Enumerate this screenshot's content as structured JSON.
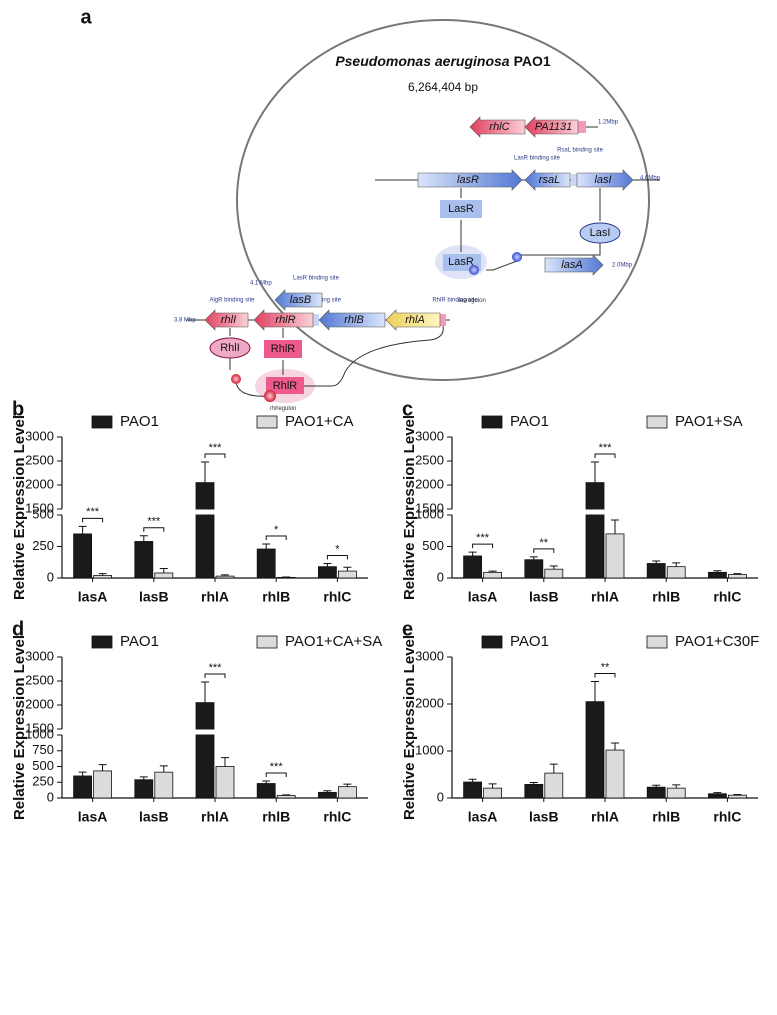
{
  "diagram": {
    "panel": "a",
    "organism": "Pseudomonas aeruginosa",
    "strain": "PAO1",
    "genome_size": "6,264,404 bp",
    "genes": [
      "rhlC",
      "PA1131",
      "lasR",
      "rsaL",
      "lasI",
      "lasA",
      "lasB",
      "rhlI",
      "rhlR",
      "rhlB",
      "rhlA"
    ],
    "proteins": [
      "LasR",
      "LasR",
      "LasI",
      "RhlI",
      "RhlR",
      "RhlR"
    ],
    "positions": [
      "1.2Mbp",
      "4.6Mbp",
      "2.0Mbp",
      "4.1 Mbp",
      "3.8 Mbp"
    ],
    "binding_sites": [
      "LasR binding site",
      "RsaL binding site",
      "LasR binding site",
      "AlgR binding site",
      "LasR binding site",
      "RhlR binding site"
    ],
    "regulons": [
      {
        "prefix": "las",
        "word": "regulon"
      },
      {
        "prefix": "rhl",
        "word": "regulon"
      }
    ]
  },
  "chart_data": [
    {
      "type": "bar",
      "panel": "b",
      "ylabel": "Relative Expression Level",
      "categories": [
        "lasA",
        "lasB",
        "rhlA",
        "rhlB",
        "rhlC"
      ],
      "series": [
        {
          "name": "PAO1",
          "color": "#1a1a1a",
          "values": [
            350,
            290,
            2050,
            230,
            90
          ],
          "errors": [
            60,
            45,
            430,
            40,
            25
          ]
        },
        {
          "name": "PAO1+CA",
          "color": "#dcdcdc",
          "values": [
            20,
            40,
            15,
            5,
            55
          ],
          "errors": [
            15,
            35,
            10,
            3,
            30
          ]
        }
      ],
      "significance": [
        "***",
        "***",
        "***",
        "*",
        "*"
      ],
      "ylim": [
        0,
        3000
      ],
      "ybreak": [
        500,
        1500
      ],
      "yticks": [
        0,
        250,
        500,
        1500,
        2000,
        2500,
        3000
      ]
    },
    {
      "type": "bar",
      "panel": "c",
      "ylabel": "Relative Expression Level",
      "categories": [
        "lasA",
        "lasB",
        "rhlA",
        "rhlB",
        "rhlC"
      ],
      "series": [
        {
          "name": "PAO1",
          "color": "#1a1a1a",
          "values": [
            350,
            290,
            2050,
            230,
            90
          ],
          "errors": [
            60,
            45,
            430,
            40,
            25
          ]
        },
        {
          "name": "PAO1+SA",
          "color": "#dcdcdc",
          "values": [
            90,
            140,
            700,
            180,
            55
          ],
          "errors": [
            20,
            50,
            220,
            60,
            15
          ]
        }
      ],
      "significance": [
        "***",
        "**",
        "***",
        null,
        null
      ],
      "ylim": [
        0,
        3000
      ],
      "ybreak": [
        1000,
        1500
      ],
      "yticks": [
        0,
        500,
        1000,
        1500,
        2000,
        2500,
        3000
      ]
    },
    {
      "type": "bar",
      "panel": "d",
      "ylabel": "Relative Expression Level",
      "categories": [
        "lasA",
        "lasB",
        "rhlA",
        "rhlB",
        "rhlC"
      ],
      "series": [
        {
          "name": "PAO1",
          "color": "#1a1a1a",
          "values": [
            350,
            290,
            2050,
            230,
            90
          ],
          "errors": [
            60,
            45,
            430,
            40,
            25
          ]
        },
        {
          "name": "PAO1+CA+SA",
          "color": "#dcdcdc",
          "values": [
            430,
            410,
            500,
            40,
            180
          ],
          "errors": [
            100,
            100,
            140,
            10,
            40
          ]
        }
      ],
      "significance": [
        null,
        null,
        "***",
        "***",
        null
      ],
      "ylim": [
        0,
        3000
      ],
      "ybreak": [
        1000,
        1500
      ],
      "yticks": [
        0,
        250,
        500,
        750,
        1000,
        1500,
        2000,
        2500,
        3000
      ]
    },
    {
      "type": "bar",
      "panel": "e",
      "ylabel": "Relative Expression Level",
      "categories": [
        "lasA",
        "lasB",
        "rhlA",
        "rhlB",
        "rhlC"
      ],
      "series": [
        {
          "name": "PAO1",
          "color": "#1a1a1a",
          "values": [
            340,
            290,
            2050,
            230,
            90
          ],
          "errors": [
            60,
            40,
            430,
            40,
            25
          ]
        },
        {
          "name": "PAO1+C30F",
          "color": "#dcdcdc",
          "values": [
            210,
            530,
            1020,
            210,
            60
          ],
          "errors": [
            90,
            190,
            150,
            70,
            15
          ]
        }
      ],
      "significance": [
        null,
        null,
        "**",
        null,
        null
      ],
      "ylim": [
        0,
        3000
      ],
      "yticks": [
        0,
        1000,
        2000,
        3000
      ]
    }
  ]
}
